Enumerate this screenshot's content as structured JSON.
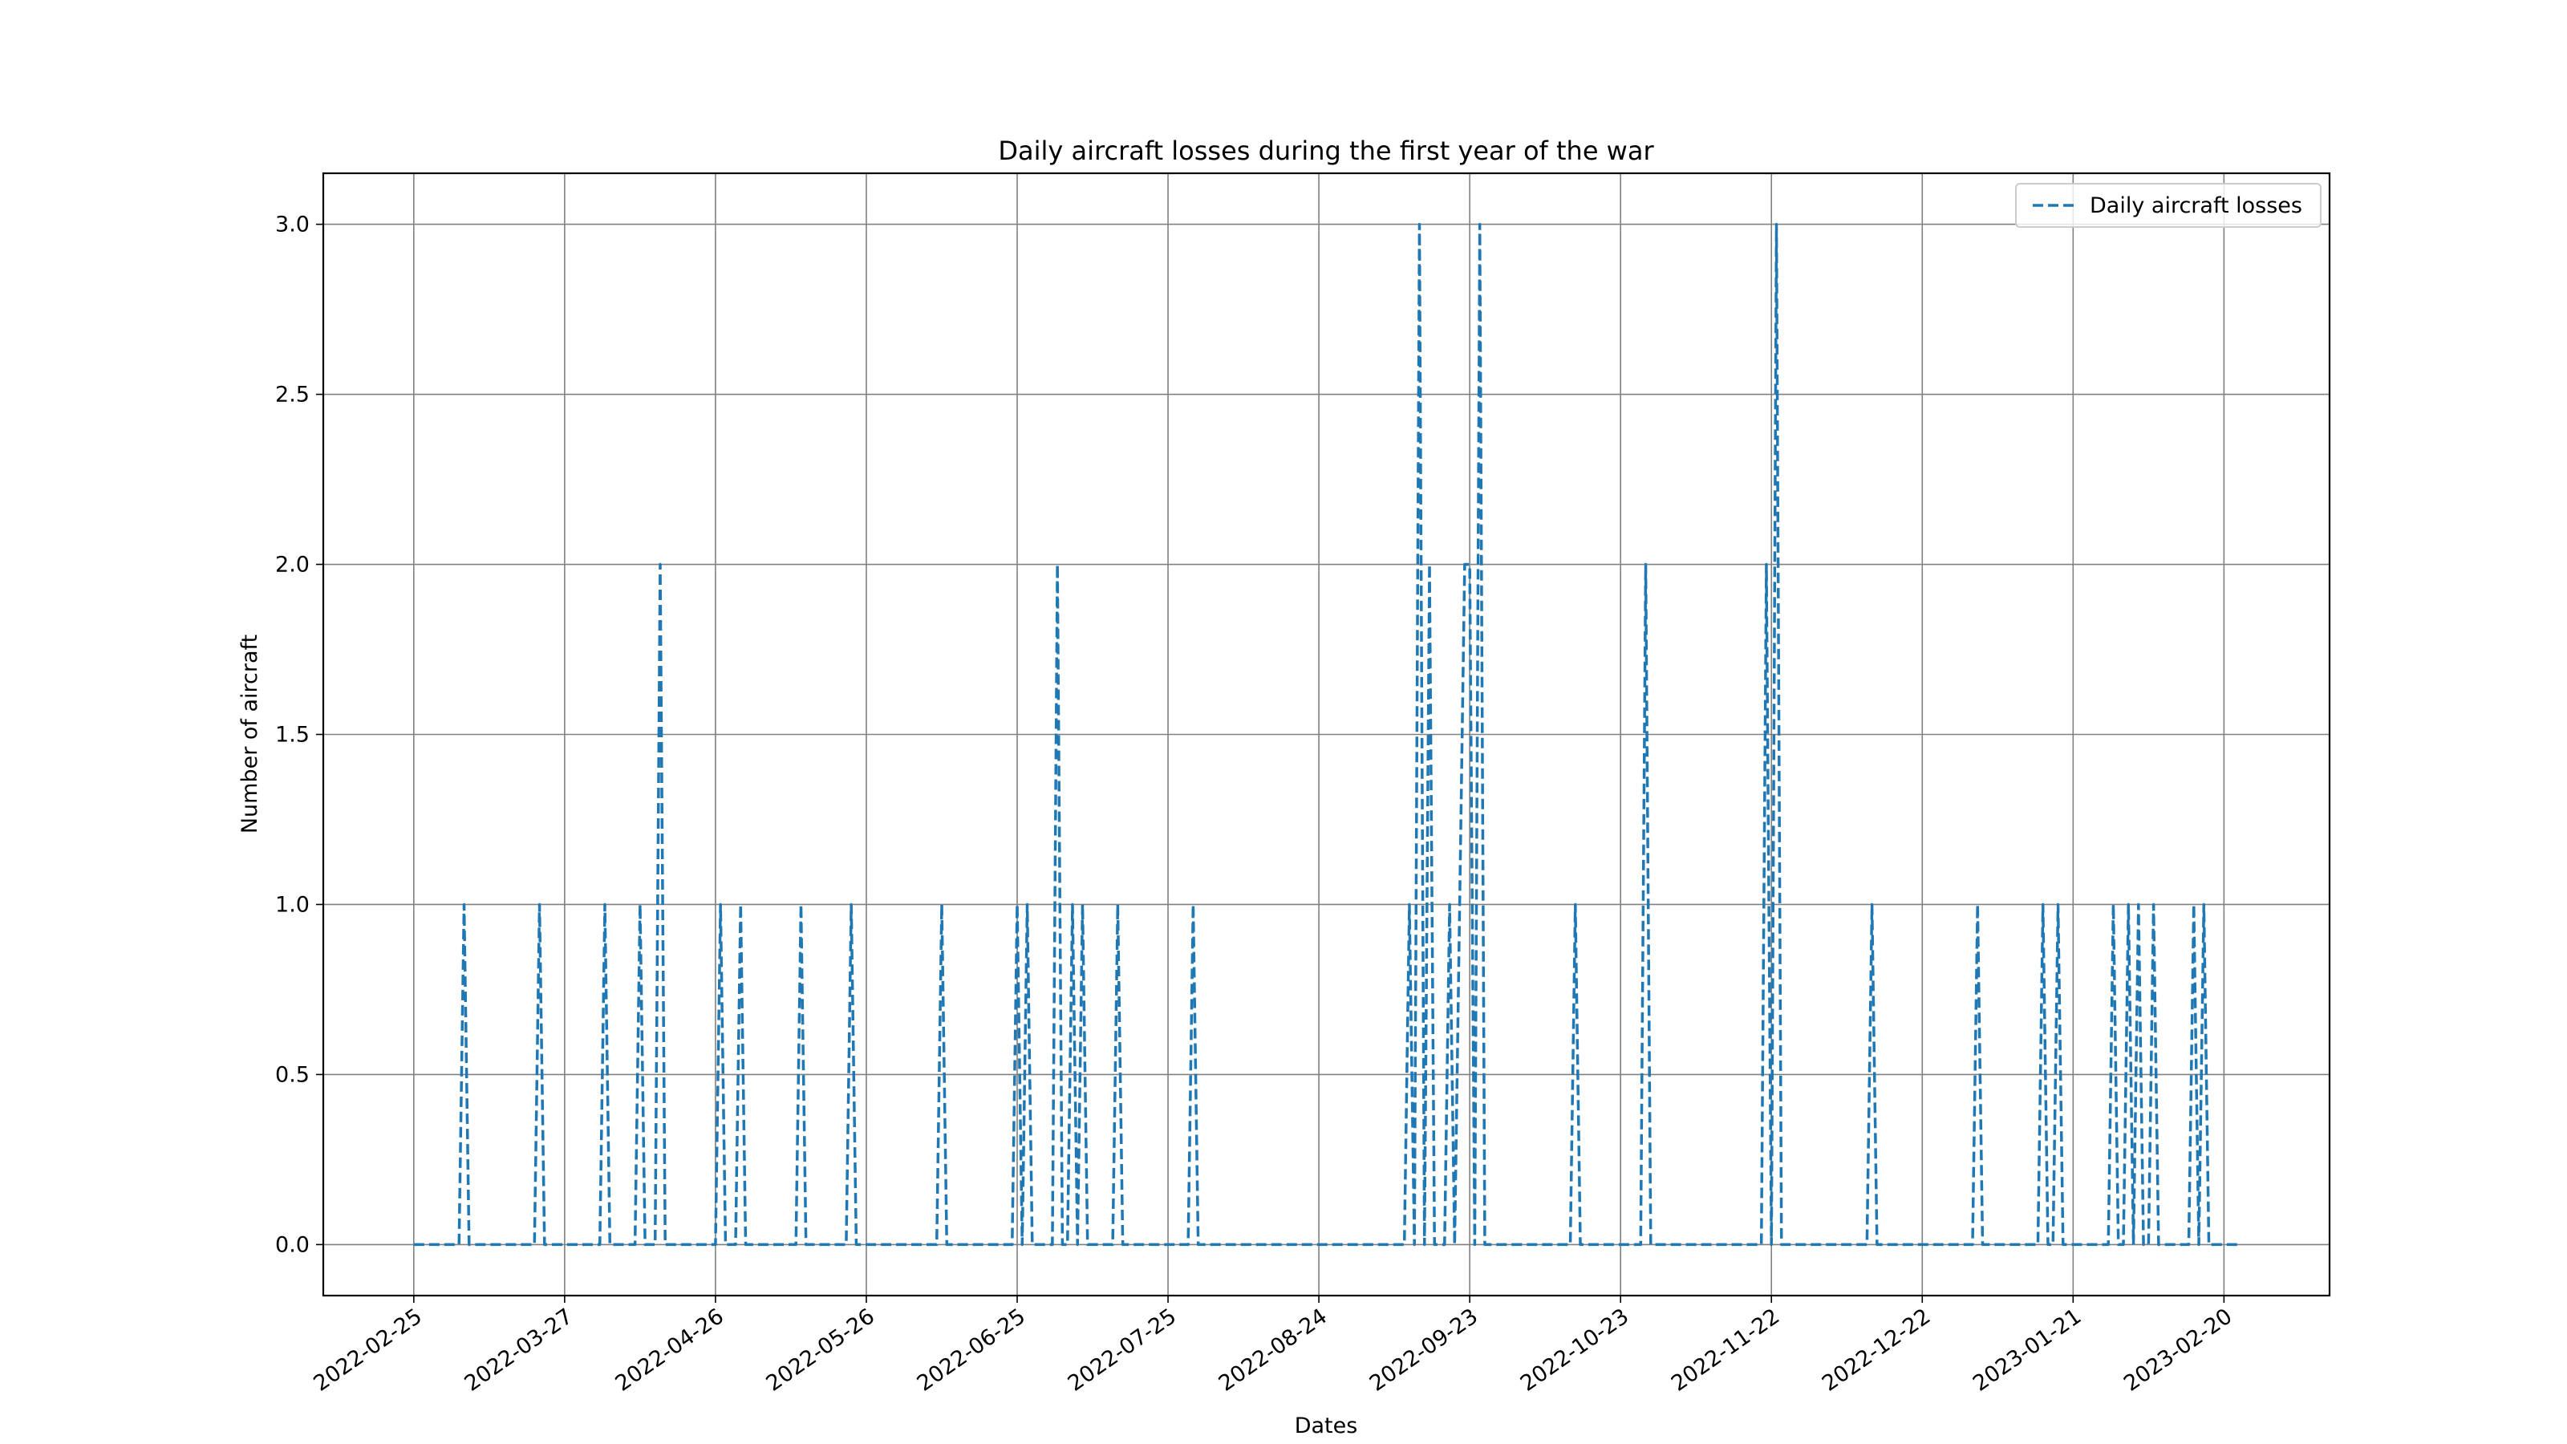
{
  "chart_data": {
    "type": "line",
    "title": "Daily aircraft losses during the first year of the war",
    "xlabel": "Dates",
    "ylabel": "Number of aircraft",
    "x_start": "2022-02-25",
    "x_end": "2023-02-23",
    "xlim": [
      "2022-02-07",
      "2023-03-13"
    ],
    "ylim": [
      -0.15,
      3.15
    ],
    "x_ticks": [
      "2022-02-25",
      "2022-03-27",
      "2022-04-26",
      "2022-05-26",
      "2022-06-25",
      "2022-07-25",
      "2022-08-24",
      "2022-09-23",
      "2022-10-23",
      "2022-11-22",
      "2022-12-22",
      "2023-01-21",
      "2023-02-20"
    ],
    "y_ticks": [
      "0.0",
      "0.5",
      "1.0",
      "1.5",
      "2.0",
      "2.5",
      "3.0"
    ],
    "grid": true,
    "legend_position": "top-right",
    "series": [
      {
        "name": "Daily aircraft losses",
        "style": "dashed",
        "color": "#1f77b4",
        "points": [
          {
            "x": "2022-03-07",
            "y": 1
          },
          {
            "x": "2022-03-22",
            "y": 1
          },
          {
            "x": "2022-04-04",
            "y": 1
          },
          {
            "x": "2022-04-11",
            "y": 1
          },
          {
            "x": "2022-04-15",
            "y": 2
          },
          {
            "x": "2022-04-27",
            "y": 1
          },
          {
            "x": "2022-05-01",
            "y": 1
          },
          {
            "x": "2022-05-13",
            "y": 1
          },
          {
            "x": "2022-05-23",
            "y": 1
          },
          {
            "x": "2022-06-10",
            "y": 1
          },
          {
            "x": "2022-06-25",
            "y": 1
          },
          {
            "x": "2022-06-27",
            "y": 1
          },
          {
            "x": "2022-07-03",
            "y": 2
          },
          {
            "x": "2022-07-06",
            "y": 1
          },
          {
            "x": "2022-07-08",
            "y": 1
          },
          {
            "x": "2022-07-15",
            "y": 1
          },
          {
            "x": "2022-07-30",
            "y": 1
          },
          {
            "x": "2022-09-11",
            "y": 1
          },
          {
            "x": "2022-09-13",
            "y": 3
          },
          {
            "x": "2022-09-15",
            "y": 2
          },
          {
            "x": "2022-09-19",
            "y": 1
          },
          {
            "x": "2022-09-21",
            "y": 1
          },
          {
            "x": "2022-09-22",
            "y": 2
          },
          {
            "x": "2022-09-23",
            "y": 2
          },
          {
            "x": "2022-09-25",
            "y": 3
          },
          {
            "x": "2022-10-14",
            "y": 1
          },
          {
            "x": "2022-10-28",
            "y": 2
          },
          {
            "x": "2022-11-21",
            "y": 2
          },
          {
            "x": "2022-11-23",
            "y": 3
          },
          {
            "x": "2022-12-12",
            "y": 1
          },
          {
            "x": "2023-01-02",
            "y": 1
          },
          {
            "x": "2023-01-15",
            "y": 1
          },
          {
            "x": "2023-01-18",
            "y": 1
          },
          {
            "x": "2023-01-29",
            "y": 1
          },
          {
            "x": "2023-02-01",
            "y": 1
          },
          {
            "x": "2023-02-03",
            "y": 1
          },
          {
            "x": "2023-02-06",
            "y": 1
          },
          {
            "x": "2023-02-14",
            "y": 1
          },
          {
            "x": "2023-02-16",
            "y": 1
          }
        ]
      }
    ]
  }
}
